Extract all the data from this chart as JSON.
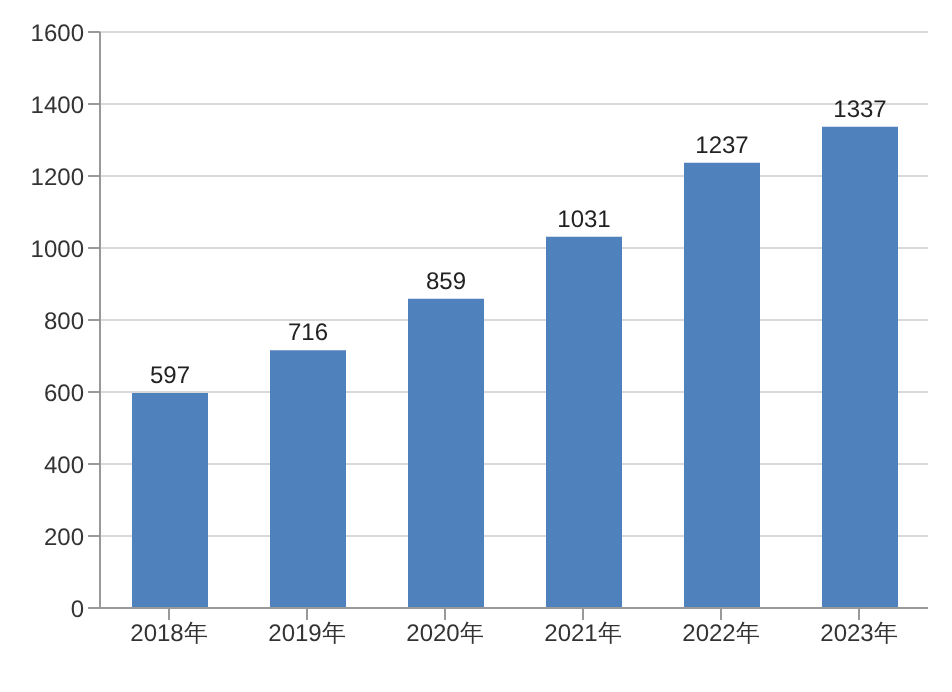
{
  "chart_data": {
    "type": "bar",
    "categories": [
      "2018年",
      "2019年",
      "2020年",
      "2021年",
      "2022年",
      "2023年"
    ],
    "values": [
      597,
      716,
      859,
      1031,
      1237,
      1337
    ],
    "color": "#4f81bd",
    "ylim": [
      0,
      1600
    ],
    "yticks": [
      0,
      200,
      400,
      600,
      800,
      1000,
      1200,
      1400,
      1600
    ],
    "grid": "y",
    "data_labels": true
  }
}
